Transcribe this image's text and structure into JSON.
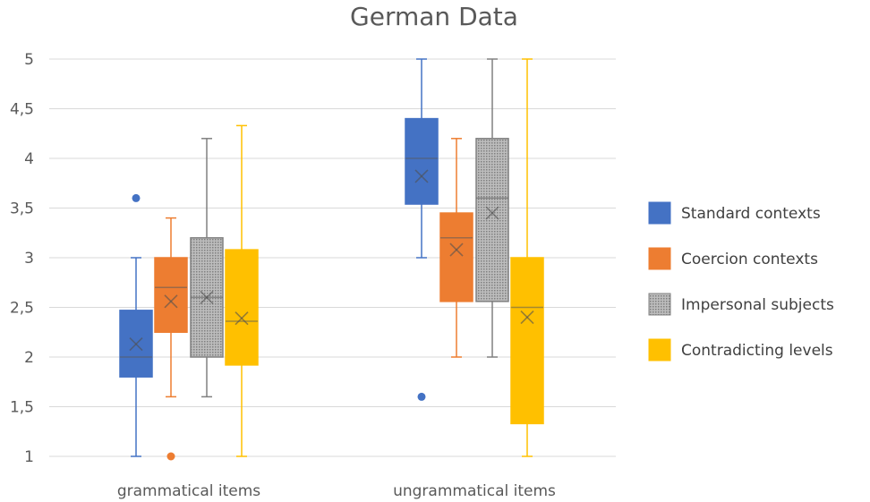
{
  "chart_data": {
    "type": "box",
    "title": "German Data",
    "xlabel": "",
    "ylabel": "",
    "ylim": [
      1,
      5
    ],
    "ytick_labels": [
      "1",
      "1,5",
      "2",
      "2,5",
      "3",
      "3,5",
      "4",
      "4,5",
      "5"
    ],
    "yticks": [
      1,
      1.5,
      2,
      2.5,
      3,
      3.5,
      4,
      4.5,
      5
    ],
    "categories": [
      "grammatical items",
      "ungrammatical items"
    ],
    "legend_position": "right",
    "grid": true,
    "series": [
      {
        "name": "Standard contexts",
        "color": "#4472c4",
        "pattern": "solid",
        "boxes": [
          {
            "min": 1.0,
            "q1": 1.8,
            "median": 2.0,
            "q3": 2.47,
            "max": 3.0,
            "mean": 2.13,
            "outliers": [
              3.6
            ]
          },
          {
            "min": 3.0,
            "q1": 3.54,
            "median": 4.0,
            "q3": 4.4,
            "max": 5.0,
            "mean": 3.82,
            "outliers": [
              1.6
            ]
          }
        ]
      },
      {
        "name": "Coercion contexts",
        "color": "#ed7d31",
        "pattern": "solid",
        "boxes": [
          {
            "min": 1.6,
            "q1": 2.25,
            "median": 2.7,
            "q3": 3.0,
            "max": 3.4,
            "mean": 2.56,
            "outliers": [
              1.0
            ]
          },
          {
            "min": 2.0,
            "q1": 2.56,
            "median": 3.2,
            "q3": 3.45,
            "max": 4.2,
            "mean": 3.08,
            "outliers": []
          }
        ]
      },
      {
        "name": "Impersonal subjects",
        "color": "#a5a5a5",
        "pattern": "dotted",
        "boxes": [
          {
            "min": 1.6,
            "q1": 2.0,
            "median": 2.6,
            "q3": 3.2,
            "max": 4.2,
            "mean": 2.6,
            "outliers": []
          },
          {
            "min": 2.0,
            "q1": 2.56,
            "median": 3.6,
            "q3": 4.2,
            "max": 5.0,
            "mean": 3.45,
            "outliers": []
          }
        ]
      },
      {
        "name": "Contradicting levels",
        "color": "#ffc000",
        "pattern": "solid",
        "boxes": [
          {
            "min": 1.0,
            "q1": 1.92,
            "median": 2.36,
            "q3": 3.08,
            "max": 4.33,
            "mean": 2.39,
            "outliers": []
          },
          {
            "min": 1.0,
            "q1": 1.33,
            "median": 2.5,
            "q3": 3.0,
            "max": 5.0,
            "mean": 2.4,
            "outliers": []
          }
        ]
      }
    ]
  }
}
